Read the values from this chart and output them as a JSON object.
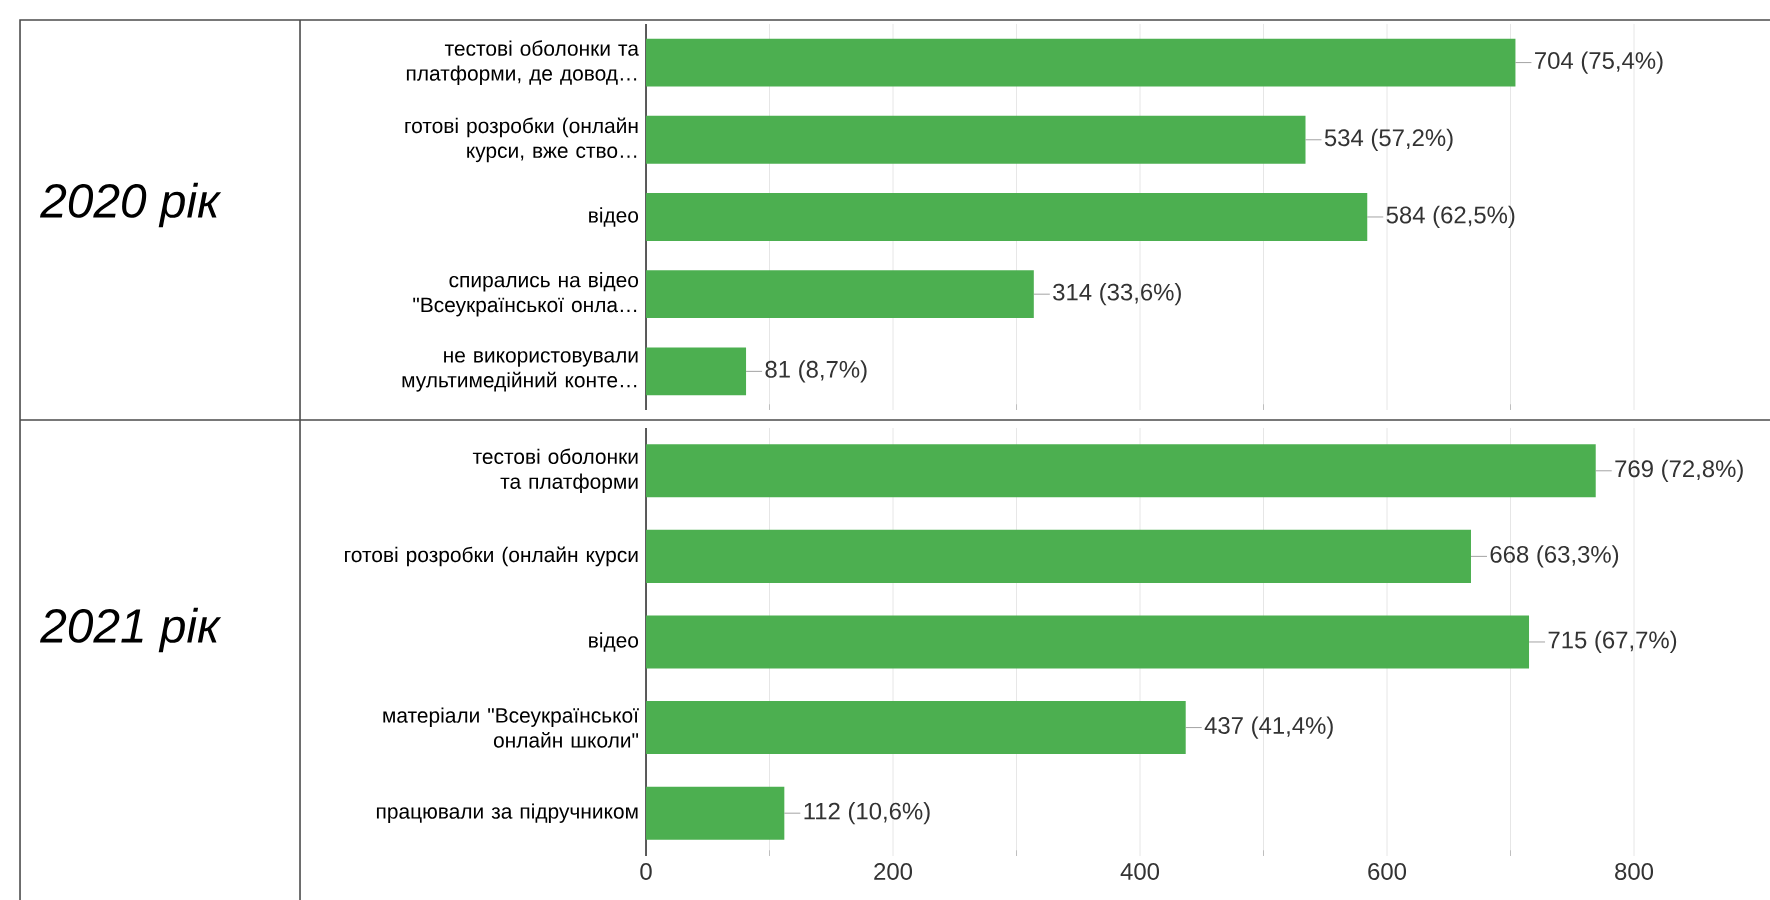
{
  "chart_data": [
    {
      "type": "bar",
      "orientation": "horizontal",
      "title": "2020 рік",
      "color": "#4caf50",
      "grid": "x",
      "tick_labels": "y",
      "categories": [
        "тестові оболонки та платформи, де довод…",
        "готові розробки (онлайн курси, вже ство…",
        "відео",
        "спирались на відео \"Всеукраїнської онла…",
        "не використовували мультимедійний конте…"
      ],
      "values": [
        704,
        534,
        584,
        314,
        81
      ],
      "value_labels": [
        "704 (75,4%)",
        "534 (57,2%)",
        "584 (62,5%)",
        "314 (33,6%)",
        "81 (8,7%)"
      ],
      "xlim": [
        0,
        800
      ],
      "xticks": [
        0,
        200,
        400,
        600,
        800
      ]
    },
    {
      "type": "bar",
      "orientation": "horizontal",
      "title": "2021 рік",
      "color": "#4caf50",
      "grid": "x",
      "categories": [
        "тестові оболонки та платформи",
        "готові розробки (онлайн курси",
        "відео",
        "матеріали \"Всеукраїнської онлайн школи\"",
        "працювали за підручником"
      ],
      "values": [
        769,
        668,
        715,
        437,
        112
      ],
      "value_labels": [
        "769 (72,8%)",
        "668 (63,3%)",
        "715 (67,7%)",
        "437 (41,4%)",
        "112 (10,6%)"
      ],
      "xlim": [
        0,
        800
      ],
      "xticks": [
        0,
        200,
        400,
        600,
        800
      ]
    }
  ]
}
